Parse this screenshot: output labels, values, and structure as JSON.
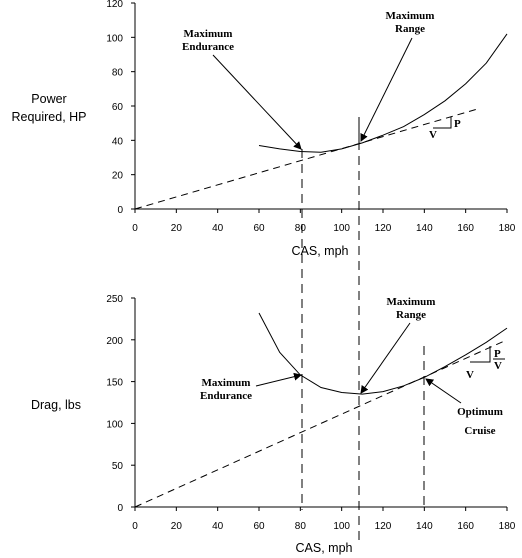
{
  "chart_data": [
    {
      "type": "line",
      "title": "",
      "xlabel": "CAS, mph",
      "ylabel": "Power Required, HP",
      "ylabel_lines": [
        "Power",
        "Required, HP"
      ],
      "xlim": [
        0,
        180
      ],
      "ylim": [
        0,
        120
      ],
      "xticks": [
        "0",
        "20",
        "40",
        "60",
        "80",
        "100",
        "120",
        "140",
        "160",
        "180"
      ],
      "yticks": [
        "0",
        "20",
        "40",
        "60",
        "80",
        "100",
        "120"
      ],
      "series": [
        {
          "x": [
            60,
            70,
            80,
            90,
            100,
            110,
            120,
            130,
            140,
            150,
            160,
            170,
            180
          ],
          "y": [
            37,
            35,
            33.5,
            33,
            35,
            38.5,
            43,
            48,
            55,
            63,
            73,
            85,
            102
          ]
        }
      ],
      "tangent_line": {
        "x": [
          0,
          165
        ],
        "y": [
          0,
          58
        ]
      },
      "min_endurance_x": 81,
      "min_range_x": 109,
      "annotations": [
        {
          "id": "max-endurance",
          "lines": [
            "Maximum",
            "Endurance"
          ],
          "target": [
            81,
            33
          ]
        },
        {
          "id": "max-range",
          "lines": [
            "Maximum",
            "Range"
          ],
          "target": [
            109,
            38.5
          ]
        }
      ],
      "slope_labels": {
        "p": "P",
        "v": "V"
      }
    },
    {
      "type": "line",
      "title": "",
      "xlabel": "CAS, mph",
      "ylabel": "Drag, lbs",
      "xlim": [
        0,
        180
      ],
      "ylim": [
        0,
        250
      ],
      "xticks": [
        "0",
        "20",
        "40",
        "60",
        "80",
        "100",
        "120",
        "140",
        "160",
        "180"
      ],
      "yticks": [
        "0",
        "50",
        "100",
        "150",
        "200",
        "250"
      ],
      "series": [
        {
          "x": [
            60,
            70,
            80,
            90,
            100,
            110,
            120,
            130,
            140,
            150,
            160,
            170,
            180
          ],
          "y": [
            232,
            185,
            158,
            143,
            137,
            135,
            138,
            145,
            155,
            168,
            182,
            197,
            214
          ]
        }
      ],
      "tangent_line": {
        "x": [
          0,
          180
        ],
        "y": [
          0,
          200
        ]
      },
      "min_endurance_x": 81,
      "min_range_x": 109,
      "optimum_cruise_x": 140,
      "annotations": [
        {
          "id": "max-endurance",
          "lines": [
            "Maximum",
            "Endurance"
          ],
          "target": [
            81,
            157
          ]
        },
        {
          "id": "max-range",
          "lines": [
            "Maximum",
            "Range"
          ],
          "target": [
            109,
            135
          ]
        },
        {
          "id": "optimum-cruise",
          "lines": [
            "Optimum",
            "Cruise"
          ],
          "target": [
            140,
            155
          ]
        }
      ],
      "slope_labels": {
        "p": "P",
        "v": "V",
        "v2": "V"
      }
    }
  ]
}
